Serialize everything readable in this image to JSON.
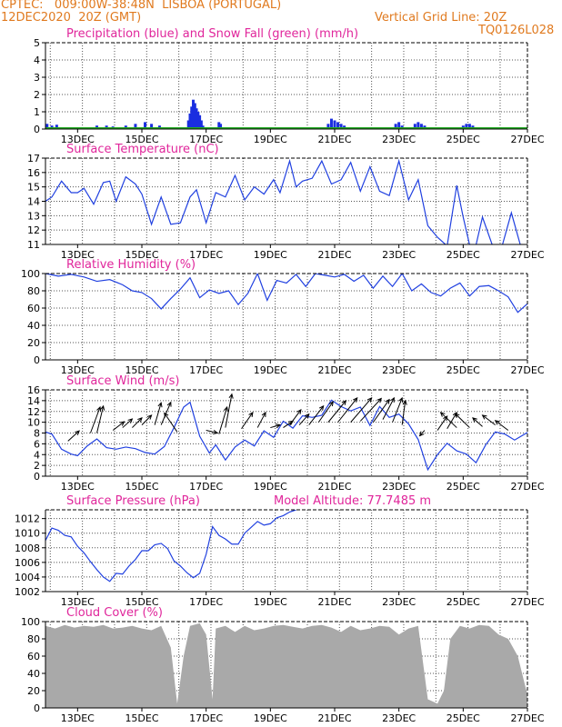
{
  "header": {
    "line1": "CPTEC:   009:00W-38:48N  LISBOA (PORTUGAL)",
    "line2": "12DEC2020  20Z (GMT)",
    "grid_note": "Vertical Grid Line: 20Z",
    "code": "TQ0126L028"
  },
  "x_axis": {
    "ticks": [
      "13DEC",
      "15DEC",
      "17DEC",
      "19DEC",
      "21DEC",
      "23DEC",
      "25DEC",
      "27DEC"
    ],
    "tick_days": [
      1,
      3,
      5,
      7,
      9,
      11,
      13,
      15
    ],
    "grid_days": [
      0.15,
      1.15,
      2.15,
      3.15,
      4.15,
      5.15,
      6.15,
      7.15,
      8.15,
      9.15,
      10.15,
      11.15,
      12.15,
      13.15,
      14.15
    ]
  },
  "colors": {
    "header": "#e07a1f",
    "title": "#e0269b",
    "line": "#2040e0",
    "precip": "#1a2ee0",
    "snow": "#22aa22",
    "cloud": "#a9a9a9",
    "wind_arrow": "#000000"
  },
  "chart_data": [
    {
      "type": "bar",
      "title": "Precipitation (blue) and Snow Fall (green) (mm/h)",
      "ylim": [
        0,
        5
      ],
      "yticks": [
        0,
        1,
        2,
        3,
        4,
        5
      ],
      "series": [
        {
          "x": [
            0.05,
            0.2,
            0.35,
            0.5,
            1.4,
            1.6,
            1.9,
            2.1,
            2.5,
            2.8,
            3.1,
            3.3,
            3.55,
            3.8,
            4.45,
            4.5,
            4.55,
            4.6,
            4.65,
            4.7,
            4.75,
            4.8,
            4.85,
            4.9,
            5.4,
            5.45,
            6.4,
            8.8,
            8.9,
            9.0,
            9.1,
            9.2,
            9.3,
            10.9,
            11.0,
            11.1,
            11.5,
            11.6,
            11.7,
            11.8,
            13.0,
            13.1,
            13.2,
            13.3
          ],
          "values": [
            0.3,
            0.2,
            0.25,
            0.1,
            0.1,
            0.2,
            0.2,
            0.15,
            0.2,
            0.3,
            0.4,
            0.3,
            0.2,
            0.1,
            0.5,
            0.9,
            1.3,
            1.7,
            1.5,
            1.2,
            1.0,
            0.8,
            0.5,
            0.2,
            0.4,
            0.3,
            0.1,
            0.3,
            0.6,
            0.5,
            0.4,
            0.3,
            0.2,
            0.3,
            0.4,
            0.2,
            0.3,
            0.4,
            0.3,
            0.2,
            0.2,
            0.3,
            0.3,
            0.2
          ]
        },
        {
          "x": [
            0,
            15
          ],
          "values": [
            0.05,
            0.05
          ]
        }
      ]
    },
    {
      "type": "line",
      "title": "Surface Temperature (nC)",
      "ylim": [
        11,
        17
      ],
      "yticks": [
        11,
        12,
        13,
        14,
        15,
        16,
        17
      ],
      "x": [
        0,
        0.2,
        0.5,
        0.8,
        1.0,
        1.2,
        1.5,
        1.8,
        2.0,
        2.2,
        2.5,
        2.8,
        3.0,
        3.3,
        3.6,
        3.9,
        4.2,
        4.5,
        4.7,
        5.0,
        5.3,
        5.6,
        5.9,
        6.2,
        6.5,
        6.8,
        7.1,
        7.3,
        7.6,
        7.8,
        8.0,
        8.3,
        8.6,
        8.9,
        9.2,
        9.5,
        9.8,
        10.1,
        10.4,
        10.7,
        11.0,
        11.3,
        11.6,
        11.9,
        12.2,
        12.5,
        12.8,
        13.0,
        13.3,
        13.6,
        13.9,
        14.2,
        14.5,
        14.8
      ],
      "values": [
        14.0,
        14.3,
        15.4,
        14.6,
        14.6,
        14.9,
        13.8,
        15.3,
        15.4,
        14.0,
        15.7,
        15.2,
        14.5,
        12.4,
        14.3,
        12.4,
        12.5,
        14.3,
        14.8,
        12.5,
        14.6,
        14.3,
        15.8,
        14.1,
        15.0,
        14.5,
        15.5,
        14.6,
        16.8,
        15.0,
        15.4,
        15.6,
        16.8,
        15.2,
        15.5,
        16.7,
        14.7,
        16.4,
        14.7,
        14.4,
        16.8,
        14.1,
        15.5,
        12.3,
        11.5,
        10.9,
        15.1,
        12.9,
        10.0,
        12.9,
        11.0,
        10.8,
        13.2,
        10.8
      ]
    },
    {
      "type": "line",
      "title": "Relative Humidity (%)",
      "ylim": [
        0,
        100
      ],
      "yticks": [
        0,
        20,
        40,
        60,
        80,
        100
      ],
      "x": [
        0,
        0.4,
        0.8,
        1.2,
        1.6,
        2.0,
        2.4,
        2.7,
        3.0,
        3.3,
        3.6,
        3.9,
        4.2,
        4.5,
        4.8,
        5.1,
        5.4,
        5.7,
        6.0,
        6.3,
        6.6,
        6.9,
        7.2,
        7.5,
        7.8,
        8.1,
        8.4,
        8.7,
        9.0,
        9.3,
        9.6,
        9.9,
        10.2,
        10.5,
        10.8,
        11.1,
        11.4,
        11.7,
        12.0,
        12.3,
        12.6,
        12.9,
        13.2,
        13.5,
        13.8,
        14.1,
        14.4,
        14.7,
        15.0
      ],
      "values": [
        100,
        97,
        99,
        96,
        91,
        93,
        87,
        80,
        78,
        71,
        59,
        71,
        82,
        95,
        72,
        81,
        77,
        80,
        64,
        77,
        100,
        69,
        92,
        89,
        99,
        85,
        100,
        98,
        96,
        99,
        91,
        98,
        83,
        97,
        85,
        100,
        80,
        88,
        78,
        74,
        83,
        89,
        74,
        85,
        86,
        80,
        73,
        55,
        65
      ]
    },
    {
      "type": "line",
      "title": "Surface Wind (m/s)",
      "ylim": [
        0,
        16
      ],
      "yticks": [
        0,
        2,
        4,
        6,
        8,
        10,
        12,
        14,
        16
      ],
      "x": [
        0,
        0.2,
        0.5,
        0.8,
        1.0,
        1.3,
        1.6,
        1.9,
        2.2,
        2.5,
        2.8,
        3.1,
        3.4,
        3.7,
        4.0,
        4.3,
        4.5,
        4.8,
        5.1,
        5.3,
        5.6,
        5.9,
        6.2,
        6.5,
        6.8,
        7.1,
        7.4,
        7.7,
        8.0,
        8.3,
        8.6,
        8.9,
        9.2,
        9.5,
        9.8,
        10.1,
        10.4,
        10.7,
        11.0,
        11.3,
        11.6,
        11.9,
        12.2,
        12.5,
        12.8,
        13.1,
        13.4,
        13.7,
        14.0,
        14.3,
        14.6,
        15.0
      ],
      "values": [
        8.2,
        7.8,
        5.0,
        4.1,
        3.8,
        5.6,
        6.9,
        5.3,
        5.0,
        5.4,
        5.1,
        4.4,
        4.1,
        5.5,
        9.0,
        12.8,
        13.7,
        7.4,
        4.3,
        5.8,
        3.0,
        5.4,
        6.7,
        5.6,
        8.4,
        7.2,
        10.2,
        8.9,
        11.2,
        10.9,
        11.3,
        14.1,
        12.9,
        12.1,
        12.8,
        9.4,
        12.9,
        10.9,
        11.5,
        9.7,
        6.8,
        1.2,
        4.0,
        6.1,
        4.7,
        4.1,
        2.5,
        5.8,
        8.2,
        7.8,
        6.7,
        8.1
      ],
      "arrows": {
        "x": [
          0.7,
          1.4,
          1.6,
          2.1,
          2.4,
          2.7,
          3.0,
          3.4,
          3.6,
          4.1,
          5.0,
          5.4,
          5.6,
          6.1,
          6.6,
          7.0,
          7.4,
          7.6,
          7.9,
          8.2,
          8.5,
          8.8,
          9.1,
          9.5,
          9.8,
          10.2,
          10.5,
          10.8,
          11.1,
          11.8,
          12.2,
          12.5,
          12.8,
          13.2,
          13.6,
          14.0,
          14.4
        ],
        "y": [
          6.5,
          8.0,
          8.0,
          8.5,
          9.0,
          9.0,
          9.5,
          9.5,
          9.5,
          8.2,
          8.5,
          7.8,
          9.0,
          8.8,
          9.0,
          9.0,
          9.0,
          9.5,
          9.5,
          9.5,
          10.0,
          10.0,
          10.0,
          10.0,
          10.2,
          10.0,
          10.5,
          10.0,
          9.5,
          8.5,
          8.5,
          8.8,
          9.0,
          9.0,
          9.2,
          9.5,
          8.5
        ],
        "u": [
          0.35,
          0.3,
          0.2,
          0.35,
          0.3,
          0.3,
          0.3,
          0.2,
          0.3,
          -0.4,
          0.35,
          0.25,
          0.2,
          0.35,
          0.25,
          0.3,
          0.3,
          0.35,
          0.3,
          0.45,
          0.45,
          0.55,
          0.6,
          0.65,
          0.65,
          0.5,
          0.35,
          0.3,
          0.1,
          -0.15,
          0.3,
          0.3,
          -0.5,
          -0.45,
          -0.3,
          -0.4,
          -0.4
        ],
        "v": [
          1.9,
          4.8,
          5.0,
          1.6,
          1.6,
          1.8,
          1.8,
          4.1,
          4.2,
          3.5,
          -0.5,
          5.0,
          6.2,
          3.0,
          2.8,
          0.5,
          1.2,
          2.8,
          2.0,
          3.5,
          3.8,
          4.0,
          4.5,
          4.5,
          4.2,
          4.2,
          4.0,
          4.5,
          4.5,
          -1.0,
          2.6,
          3.0,
          2.8,
          2.6,
          1.6,
          1.8,
          1.8
        ]
      }
    },
    {
      "type": "line",
      "title": "Surface Pressure (hPa)",
      "subtitle": "Model Altitude: 77.7485 m",
      "ylim": [
        1002,
        1013.2
      ],
      "yticks": [
        1002,
        1004,
        1006,
        1008,
        1010,
        1012
      ],
      "x": [
        0,
        0.2,
        0.4,
        0.6,
        0.8,
        1.0,
        1.2,
        1.4,
        1.6,
        1.8,
        2.0,
        2.2,
        2.4,
        2.6,
        2.8,
        3.0,
        3.2,
        3.4,
        3.6,
        3.8,
        4.0,
        4.2,
        4.4,
        4.6,
        4.8,
        5.0,
        5.2,
        5.4,
        5.6,
        5.8,
        6.0,
        6.2,
        6.4,
        6.6,
        6.8,
        7.0,
        7.2,
        7.4,
        7.6,
        7.8
      ],
      "values": [
        1009.0,
        1010.7,
        1010.4,
        1009.7,
        1009.5,
        1008.2,
        1007.3,
        1006.1,
        1005.0,
        1004.0,
        1003.4,
        1004.5,
        1004.4,
        1005.5,
        1006.4,
        1007.6,
        1007.6,
        1008.4,
        1008.6,
        1007.9,
        1006.2,
        1005.5,
        1004.6,
        1003.9,
        1004.5,
        1007.1,
        1010.9,
        1009.7,
        1009.2,
        1008.5,
        1008.5,
        1010.0,
        1010.8,
        1011.6,
        1011.1,
        1011.3,
        1012.1,
        1012.4,
        1012.9,
        1013.2
      ]
    },
    {
      "type": "area",
      "title": "Cloud Cover (%)",
      "ylim": [
        0,
        100
      ],
      "yticks": [
        0,
        20,
        40,
        60,
        80,
        100
      ],
      "x": [
        0,
        0.3,
        0.6,
        0.9,
        1.2,
        1.5,
        1.8,
        2.1,
        2.4,
        2.7,
        3.0,
        3.3,
        3.6,
        3.9,
        4.1,
        4.3,
        4.5,
        4.8,
        5.0,
        5.2,
        5.3,
        5.6,
        5.9,
        6.2,
        6.5,
        6.8,
        7.1,
        7.4,
        7.7,
        8.0,
        8.3,
        8.6,
        8.9,
        9.2,
        9.5,
        9.8,
        10.1,
        10.4,
        10.7,
        11.0,
        11.3,
        11.6,
        11.9,
        12.2,
        12.4,
        12.6,
        12.9,
        13.2,
        13.5,
        13.8,
        14.1,
        14.4,
        14.7,
        15.0
      ],
      "values": [
        95,
        92,
        96,
        93,
        95,
        94,
        96,
        92,
        93,
        95,
        92,
        90,
        95,
        70,
        5,
        60,
        95,
        98,
        85,
        10,
        92,
        95,
        88,
        95,
        90,
        92,
        95,
        96,
        94,
        92,
        95,
        96,
        93,
        88,
        95,
        90,
        92,
        95,
        94,
        85,
        92,
        95,
        10,
        5,
        20,
        80,
        95,
        92,
        96,
        95,
        85,
        80,
        60,
        15
      ]
    }
  ]
}
